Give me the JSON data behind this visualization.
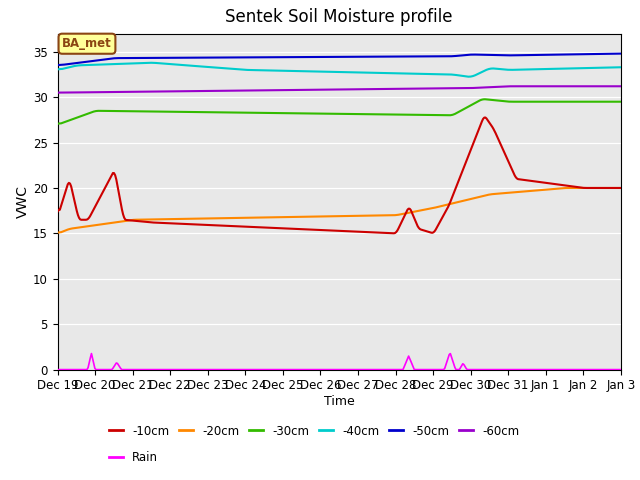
{
  "title": "Sentek Soil Moisture profile",
  "xlabel": "Time",
  "ylabel": "VWC",
  "ylim": [
    0,
    37
  ],
  "yticks": [
    0,
    5,
    10,
    15,
    20,
    25,
    30,
    35
  ],
  "background_color": "#e8e8e8",
  "label_box_text": "BA_met",
  "label_box_facecolor": "#ffff99",
  "label_box_edgecolor": "#8B4513",
  "line_colors": {
    "-10cm": "#cc0000",
    "-20cm": "#ff8800",
    "-30cm": "#33bb00",
    "-40cm": "#00cccc",
    "-50cm": "#0000cc",
    "-60cm": "#9900cc",
    "Rain": "#ff00ff"
  },
  "xtick_labels": [
    "Dec 19",
    "Dec 20",
    "Dec 21",
    "Dec 22",
    "Dec 23",
    "Dec 24",
    "Dec 25",
    "Dec 26",
    "Dec 27",
    "Dec 28",
    "Dec 29",
    "Dec 30",
    "Dec 31",
    "Jan 1",
    "Jan 2",
    "Jan 3"
  ],
  "legend_row1": [
    "-10cm",
    "-20cm",
    "-30cm",
    "-40cm",
    "-50cm",
    "-60cm"
  ],
  "legend_row2": [
    "Rain"
  ]
}
